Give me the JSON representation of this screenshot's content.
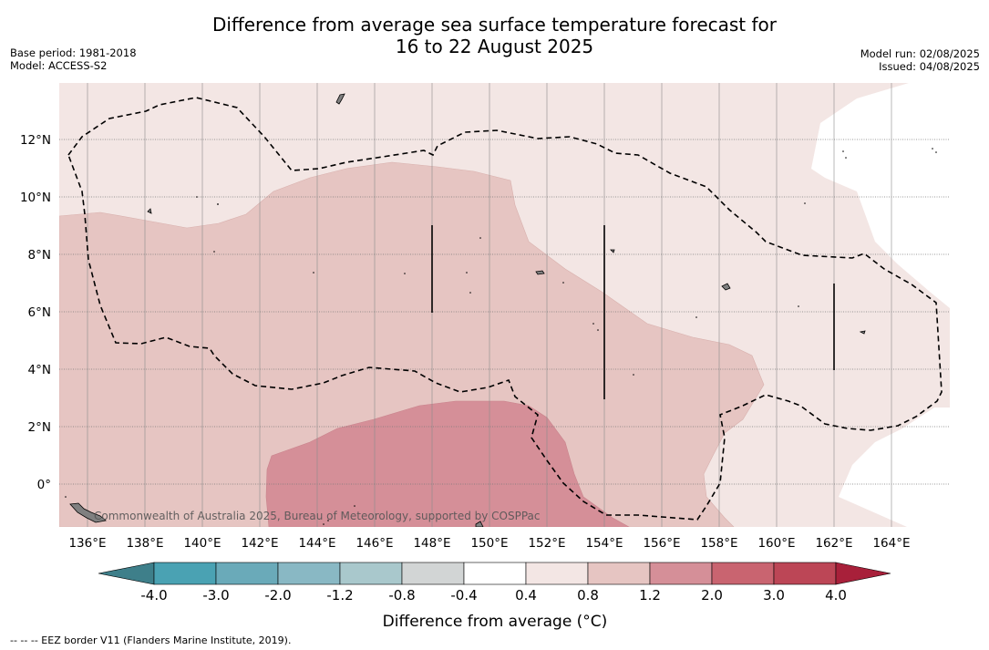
{
  "title_line1": "Difference from average sea surface temperature forecast for",
  "title_line2": "16 to 22 August 2025",
  "base_period": "Base period: 1981-2018",
  "model": "Model: ACCESS-S2",
  "model_run": "Model run: 02/08/2025",
  "issued": "Issued: 04/08/2025",
  "copyright": "Commonwealth of Australia 2025, Bureau of Meteorology, supported by COSPPac",
  "footnote": "--  --  -- EEZ border V11 (Flanders Marine Institute, 2019).",
  "map": {
    "lon_range": [
      135,
      166
    ],
    "lat_range": [
      -1.5,
      14
    ],
    "lon_ticks": [
      "136°E",
      "138°E",
      "140°E",
      "142°E",
      "144°E",
      "146°E",
      "148°E",
      "150°E",
      "152°E",
      "154°E",
      "156°E",
      "158°E",
      "160°E",
      "162°E",
      "164°E"
    ],
    "lat_ticks": [
      "12°N",
      "10°N",
      "8°N",
      "6°N",
      "4°N",
      "2°N",
      "0°"
    ]
  },
  "colorbar": {
    "title": "Difference from average (°C)",
    "tick_labels": [
      "-4.0",
      "-3.0",
      "-2.0",
      "-1.2",
      "-0.8",
      "-0.4",
      "0.4",
      "0.8",
      "1.2",
      "2.0",
      "3.0",
      "4.0"
    ],
    "bins": [
      {
        "range": "<-4.0",
        "color": "#3e7f8a"
      },
      {
        "range": "-4.0 to -3.0",
        "color": "#4aa2b3"
      },
      {
        "range": "-3.0 to -2.0",
        "color": "#6aaab9"
      },
      {
        "range": "-2.0 to -1.2",
        "color": "#89b8c4"
      },
      {
        "range": "-1.2 to -0.8",
        "color": "#a9c8cc"
      },
      {
        "range": "-0.8 to -0.4",
        "color": "#d2d5d5"
      },
      {
        "range": "-0.4 to 0.4",
        "color": "#ffffff"
      },
      {
        "range": "0.4 to 0.8",
        "color": "#f3e6e4"
      },
      {
        "range": "0.8 to 1.2",
        "color": "#e6c5c2"
      },
      {
        "range": "1.2 to 2.0",
        "color": "#d58f98"
      },
      {
        "range": "2.0 to 3.0",
        "color": "#c96470"
      },
      {
        "range": "3.0 to 4.0",
        "color": "#bc4656"
      },
      {
        "range": ">4.0",
        "color": "#a8203a"
      }
    ]
  }
}
